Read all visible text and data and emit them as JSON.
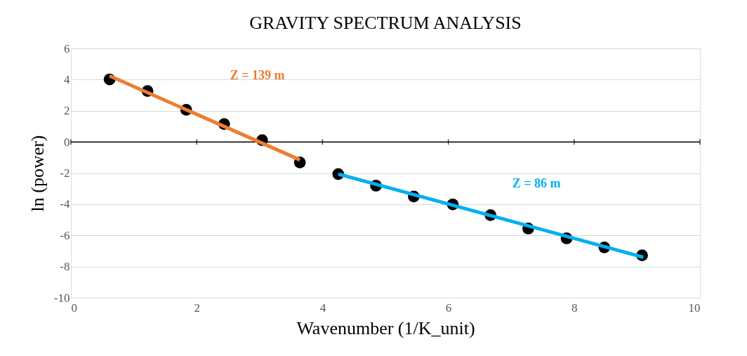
{
  "chart_data": {
    "type": "scatter",
    "title": "GRAVITY SPECTRUM ANALYSIS",
    "xlabel": "Wavenumber (1/K_unit)",
    "ylabel": "ln (power)",
    "xlim": [
      0,
      10
    ],
    "xticks": [
      0,
      2,
      4,
      6,
      8,
      10
    ],
    "ylim": [
      -10,
      6
    ],
    "yticks": [
      -10,
      -8,
      -6,
      -4,
      -2,
      0,
      2,
      4,
      6
    ],
    "grid": "y",
    "series": [
      {
        "type": "scatter",
        "color": "#000000",
        "marker": "circle",
        "x": [
          0.615,
          1.218,
          1.833,
          2.436,
          3.04,
          3.64,
          4.25,
          4.85,
          5.45,
          6.07,
          6.67,
          7.27,
          7.88,
          8.48,
          9.08
        ],
        "values": [
          4.01,
          3.27,
          2.06,
          1.15,
          0.11,
          -1.32,
          -2.06,
          -2.81,
          -3.5,
          -4.01,
          -4.7,
          -5.56,
          -6.19,
          -6.77,
          -7.28
        ]
      },
      {
        "type": "line",
        "color": "#ed7d31",
        "marker": "none",
        "line_style": "solid",
        "x": [
          0.615,
          3.64
        ],
        "values": [
          4.24,
          -1.15
        ]
      },
      {
        "type": "line",
        "color": "#00b0f0",
        "marker": "none",
        "line_style": "solid",
        "x": [
          4.25,
          9.1
        ],
        "values": [
          -2.06,
          -7.4
        ]
      }
    ],
    "annotations": [
      "Z = 139 m",
      "Z = 86 m"
    ],
    "ref_lines": [
      {
        "axis": "y",
        "value": 0,
        "color": "#000000"
      }
    ]
  }
}
